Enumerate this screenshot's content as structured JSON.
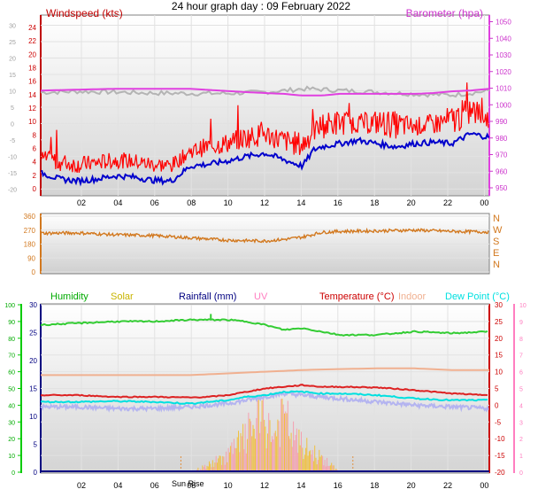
{
  "header": {
    "title": "24 hour graph day : 09 February 2022"
  },
  "chart_data": [
    {
      "type": "line",
      "name": "wind-barometer",
      "left_title": "Windspeed (kts)",
      "right_title": "Barometer (hpa)",
      "x_ticks": [
        "02",
        "04",
        "06",
        "08",
        "10",
        "12",
        "14",
        "16",
        "18",
        "20",
        "22",
        "00"
      ],
      "inner_ticks": [
        "30",
        "25",
        "20",
        "15",
        "10",
        "5",
        "0",
        "-5",
        "-10",
        "-15",
        "-20"
      ],
      "wind_ticks": [
        "24",
        "22",
        "20",
        "18",
        "16",
        "14",
        "12",
        "10",
        "8",
        "6",
        "4",
        "2",
        "0"
      ],
      "baro_ticks": [
        "1050",
        "1040",
        "1030",
        "1020",
        "1010",
        "1000",
        "990",
        "980",
        "970",
        "960",
        "950"
      ],
      "wind_ylim": [
        0,
        25
      ],
      "baro_ylim": [
        953,
        1052
      ],
      "colors": {
        "wind_gust": "#ff0000",
        "wind_avg": "#0000cc",
        "barometer": "#e040e0",
        "extra": "#b4b4b4"
      },
      "series": [
        {
          "key": "barometer",
          "x": [
            0,
            2,
            4,
            6,
            8,
            9.5,
            11,
            12,
            13,
            14,
            15,
            16,
            18,
            20,
            21,
            22,
            23,
            24
          ],
          "values": [
            1011,
            1011.5,
            1012,
            1012,
            1012,
            1011,
            1010,
            1009.5,
            1009,
            1008,
            1008,
            1009,
            1009,
            1009,
            1009.5,
            1010.5,
            1011,
            1012
          ]
        },
        {
          "key": "extra",
          "x": [
            0,
            2,
            4,
            6,
            8,
            10,
            12,
            13,
            14,
            15,
            16,
            18,
            20,
            22,
            23,
            24
          ],
          "values": [
            9.5,
            9.8,
            9.6,
            9.3,
            9.2,
            9.2,
            9.6,
            10.0,
            10.6,
            10.4,
            10.1,
            9.6,
            9.0,
            8.7,
            9.3,
            10.0
          ]
        },
        {
          "key": "wind_avg",
          "x": [
            0,
            1,
            2,
            3,
            4,
            5,
            6,
            7,
            8,
            9,
            10,
            11,
            12,
            13,
            14,
            14.6,
            15,
            16,
            17,
            18,
            19,
            20,
            21,
            22,
            23,
            24
          ],
          "values": [
            2.5,
            1.5,
            1.2,
            1.5,
            2.0,
            1.8,
            1.3,
            1.2,
            3.5,
            3.8,
            4.3,
            5.0,
            5.5,
            4.5,
            3.5,
            6.0,
            6.5,
            7.0,
            7.5,
            7.0,
            6.5,
            7.0,
            7.2,
            7.0,
            8.5,
            8.0
          ]
        },
        {
          "key": "wind_gust",
          "x": [
            0,
            1,
            2,
            3,
            4,
            5,
            6,
            7,
            8,
            9,
            10,
            11,
            12,
            13,
            14,
            15,
            16,
            17,
            18,
            19,
            20,
            21,
            22,
            23,
            24
          ],
          "values": [
            5.5,
            5.0,
            4.5,
            4.8,
            5.2,
            5.0,
            4.5,
            4.3,
            6.5,
            7.5,
            8.0,
            9.0,
            9.5,
            8.5,
            8.0,
            11.0,
            11.5,
            11.0,
            11.5,
            11.2,
            10.5,
            11.0,
            12.0,
            13.5,
            12.0
          ]
        }
      ]
    },
    {
      "type": "scatter",
      "name": "wind-direction",
      "y_ticks": [
        "360",
        "270",
        "180",
        "90",
        "0"
      ],
      "compass": [
        "N",
        "W",
        "S",
        "E",
        "N"
      ],
      "ylim": [
        0,
        360
      ],
      "color": "#d2781e",
      "x": [
        0,
        2,
        4,
        6,
        8,
        10,
        12,
        13,
        14,
        15,
        16,
        18,
        20,
        22,
        24
      ],
      "values": [
        250,
        252,
        240,
        235,
        220,
        205,
        200,
        210,
        225,
        255,
        262,
        265,
        270,
        262,
        258
      ]
    },
    {
      "type": "line",
      "name": "temp-humidity",
      "legend": [
        "Humidity",
        "Solar",
        "Rainfall (mm)",
        "UV",
        "Temperature (°C)",
        "Indoor",
        "Dew Point (°C)"
      ],
      "legend_colors": [
        "#00aa00",
        "#c8b400",
        "#000080",
        "#ff7ec0",
        "#cc0000",
        "#f0b090",
        "#00e0e0"
      ],
      "humidity_ticks": [
        "100",
        "90",
        "80",
        "70",
        "60",
        "50",
        "40",
        "30",
        "20",
        "10",
        "0"
      ],
      "rain_ticks": [
        "30",
        "25",
        "20",
        "15",
        "10",
        "5",
        "0"
      ],
      "temp_ticks": [
        "30",
        "25",
        "20",
        "15",
        "10",
        "5",
        "0",
        "-5",
        "-10",
        "-15",
        "-20"
      ],
      "uv_ticks": [
        "10",
        "9",
        "8",
        "7",
        "6",
        "5",
        "4",
        "3",
        "2",
        "1",
        "0"
      ],
      "sunrise_label": "Sun Rise",
      "x_ticks": [
        "02",
        "04",
        "06",
        "08",
        "10",
        "12",
        "14",
        "16",
        "18",
        "20",
        "22",
        "00"
      ],
      "humidity_ylim": [
        0,
        100
      ],
      "temp_ylim": [
        -20,
        30
      ],
      "series": [
        {
          "key": "humidity",
          "x": [
            0,
            2,
            4,
            6,
            8,
            9,
            10,
            11,
            12,
            13,
            14,
            15,
            16,
            18,
            19,
            20,
            22,
            24
          ],
          "values": [
            88,
            89,
            90,
            90,
            91,
            91,
            91,
            90,
            88,
            85,
            86,
            84,
            82,
            82,
            83,
            84,
            83,
            84
          ]
        },
        {
          "key": "indoor",
          "x": [
            0,
            2,
            4,
            6,
            8,
            10,
            12,
            14,
            16,
            18,
            20,
            22,
            24
          ],
          "values": [
            9,
            9,
            9,
            9,
            9,
            9.5,
            10,
            10.5,
            10.8,
            11,
            11,
            10.5,
            10.5
          ]
        },
        {
          "key": "temperature",
          "x": [
            0,
            2,
            4,
            6,
            8,
            9,
            10,
            11,
            12,
            13,
            14,
            15,
            16,
            18,
            20,
            22,
            24
          ],
          "values": [
            3,
            3,
            2.5,
            2.5,
            2.3,
            2.5,
            3,
            4,
            5,
            5.5,
            6,
            5.5,
            5.5,
            5.3,
            4.5,
            3.5,
            3
          ]
        },
        {
          "key": "dew",
          "x": [
            0,
            2,
            4,
            6,
            8,
            10,
            11,
            12,
            13,
            14,
            15,
            16,
            18,
            20,
            22,
            24
          ],
          "values": [
            1,
            1,
            1.2,
            1,
            0.5,
            1.5,
            2.5,
            3,
            4,
            4,
            3.5,
            3.5,
            3,
            2,
            1.5,
            1.5
          ]
        },
        {
          "key": "dew_band",
          "x": [
            0,
            2,
            4,
            6,
            8,
            10,
            11,
            12,
            13,
            14,
            15,
            16,
            18,
            20,
            22,
            24
          ],
          "values": [
            -0.5,
            -0.5,
            -1,
            -1,
            -0.5,
            0.5,
            1.5,
            2.5,
            3.5,
            3,
            2.5,
            2,
            1,
            0,
            -0.5,
            -1
          ]
        },
        {
          "key": "solar",
          "x": [
            8,
            9,
            10,
            11,
            11.5,
            12,
            12.5,
            13,
            13.5,
            14,
            15,
            16
          ],
          "values": [
            0,
            5,
            12,
            25,
            35,
            35,
            25,
            40,
            25,
            18,
            10,
            0
          ]
        }
      ]
    }
  ]
}
